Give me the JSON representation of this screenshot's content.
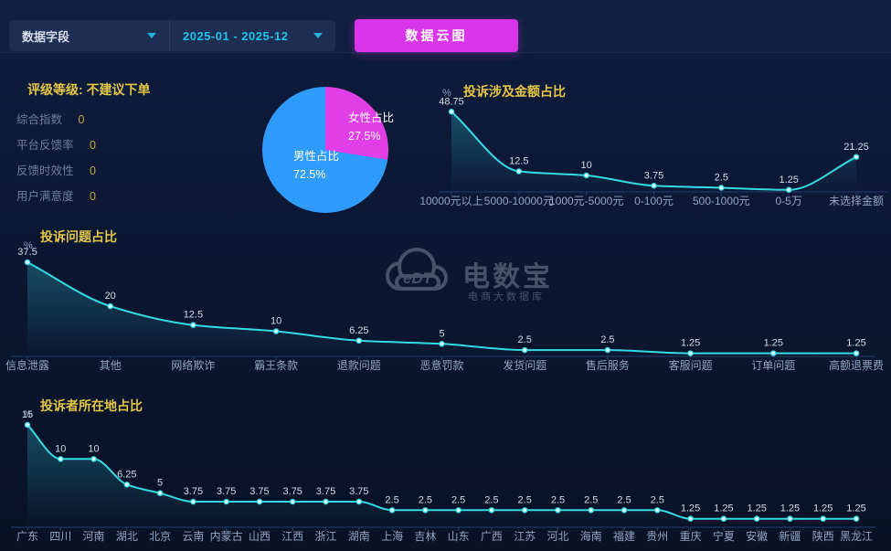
{
  "toolbar": {
    "field_select_label": "数据字段",
    "date_range_value": "2025-01 - 2025-12",
    "cloud_button_label": "数据云图"
  },
  "rating_panel": {
    "title": "评级等级: 不建议下单",
    "metrics": [
      {
        "label": "综合指数",
        "value": "0"
      },
      {
        "label": "平台反馈率",
        "value": "0"
      },
      {
        "label": "反馈时效性",
        "value": "0"
      },
      {
        "label": "用户满意度",
        "value": "0"
      }
    ]
  },
  "watermark": {
    "logo_text": "eDT",
    "brand": "电数宝",
    "tagline": "电商大数据库"
  },
  "colors": {
    "accent_cyan": "#35dbe4",
    "magenta": "#d936ea",
    "pie_female": "#e23ee8",
    "pie_male": "#2f9bfd",
    "title_yellow": "#e6c646",
    "axis_label": "#93a5c2",
    "value_label": "#d3dce9",
    "axis_line": "#25406e"
  },
  "chart_data": [
    {
      "type": "pie",
      "slices": [
        {
          "label": "女性占比",
          "value": 27.5,
          "display": "27.5%",
          "color": "#e23ee8"
        },
        {
          "label": "男性占比",
          "value": 72.5,
          "display": "72.5%",
          "color": "#2f9bfd"
        }
      ],
      "legend_position": "inside"
    },
    {
      "type": "line",
      "title": "投诉涉及金额占比",
      "ylabel": "%",
      "smooth": true,
      "area": true,
      "ylim": [
        0,
        50
      ],
      "categories": [
        "10000元以上",
        "5000-10000元",
        "1000元-5000元",
        "0-100元",
        "500-1000元",
        "0-5万",
        "未选择金额"
      ],
      "values": [
        48.75,
        12.5,
        10,
        3.75,
        2.5,
        1.25,
        21.25
      ]
    },
    {
      "type": "line",
      "title": "投诉问题占比",
      "ylabel": "%",
      "smooth": true,
      "area": true,
      "ylim": [
        0,
        37.5
      ],
      "categories": [
        "信息泄露",
        "其他",
        "网络欺诈",
        "霸王条款",
        "退款问题",
        "恶意罚款",
        "发货问题",
        "售后服务",
        "客服问题",
        "订单问题",
        "高额退票费"
      ],
      "values": [
        37.5,
        20,
        12.5,
        10,
        6.25,
        5,
        2.5,
        2.5,
        1.25,
        1.25,
        1.25
      ]
    },
    {
      "type": "line",
      "title": "投诉者所在地占比",
      "ylabel": "%",
      "smooth": true,
      "area": true,
      "ylim": [
        0,
        15
      ],
      "categories": [
        "广东",
        "四川",
        "河南",
        "湖北",
        "北京",
        "云南",
        "内蒙古",
        "山西",
        "江西",
        "浙江",
        "湖南",
        "上海",
        "吉林",
        "山东",
        "广西",
        "江苏",
        "河北",
        "海南",
        "福建",
        "贵州",
        "重庆",
        "宁夏",
        "安徽",
        "新疆",
        "陕西",
        "黑龙江"
      ],
      "values": [
        15,
        10,
        10,
        6.25,
        5,
        3.75,
        3.75,
        3.75,
        3.75,
        3.75,
        3.75,
        2.5,
        2.5,
        2.5,
        2.5,
        2.5,
        2.5,
        2.5,
        2.5,
        2.5,
        1.25,
        1.25,
        1.25,
        1.25,
        1.25,
        1.25
      ]
    }
  ]
}
